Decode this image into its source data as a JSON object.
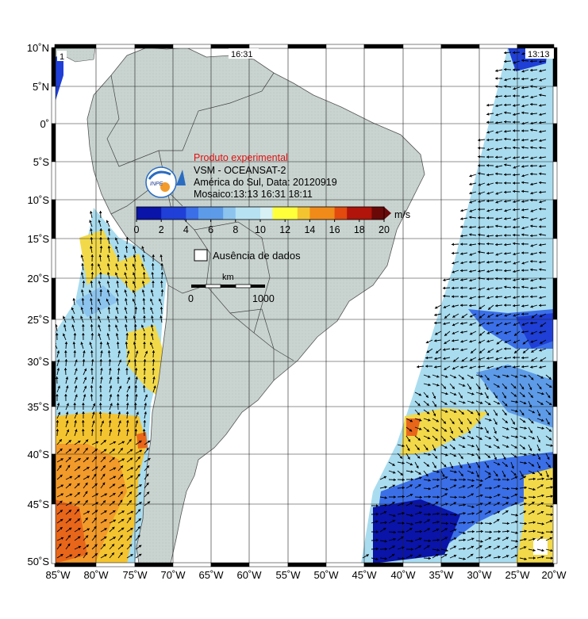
{
  "map": {
    "latitude_labels": [
      "10˚N",
      "5˚N",
      "0˚",
      "5˚S",
      "10˚S",
      "15˚S",
      "20˚S",
      "25˚S",
      "30˚S",
      "35˚S",
      "40˚S",
      "45˚S",
      "50˚S"
    ],
    "longitude_labels": [
      "85˚W",
      "80˚W",
      "75˚W",
      "70˚W",
      "65˚W",
      "60˚W",
      "55˚W",
      "50˚W",
      "45˚W",
      "40˚W",
      "35˚W",
      "30˚W",
      "25˚W",
      "20˚W"
    ],
    "pass_times": {
      "left": "1",
      "center": "16:31",
      "right": "13:13"
    }
  },
  "info": {
    "title": "Produto experimental",
    "line1": "VSM - OCEANSAT-2",
    "line2": "América do Sul, Data: 20120919",
    "line3": "Mosaico:13:13 16:31 18:11",
    "logo_text": "INPE"
  },
  "colorbar": {
    "unit": "m/s",
    "ticks": [
      "0",
      "2",
      "4",
      "6",
      "8",
      "10",
      "12",
      "14",
      "16",
      "18",
      "20"
    ],
    "colors": [
      "#0a14a8",
      "#1f3fd6",
      "#3b6fe8",
      "#5d9be8",
      "#8cc4ee",
      "#b7e2f2",
      "#d6f0f6",
      "#ffff3a",
      "#f4c430",
      "#f08a18",
      "#e24a0e",
      "#b0140a",
      "#6a0808"
    ]
  },
  "legend": {
    "no_data_label": "Ausência de dados"
  },
  "scale": {
    "unit_label": "km",
    "start_label": "0",
    "end_label": "1000"
  }
}
